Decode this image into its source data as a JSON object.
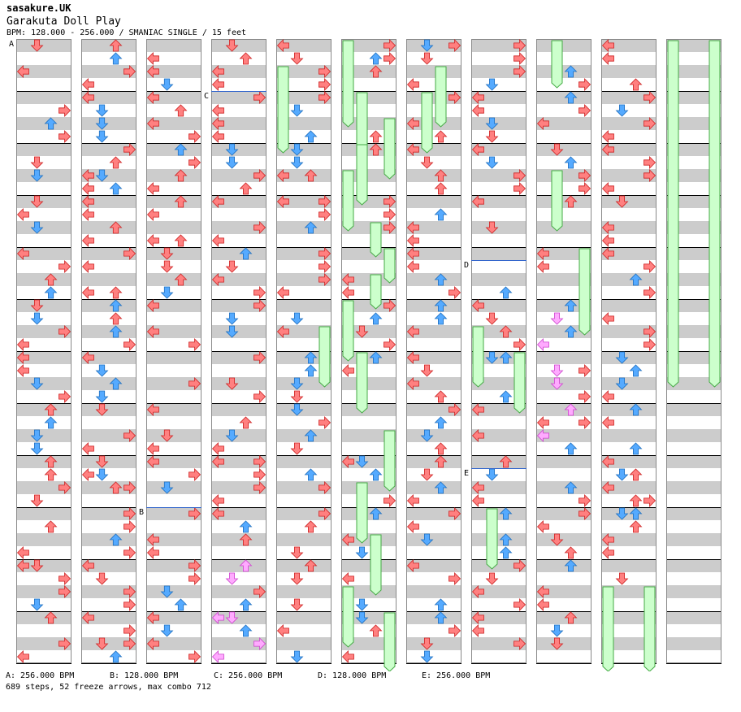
{
  "header": {
    "artist": "sasakure.UK",
    "title": "Garakuta Doll Play",
    "subtitle": "BPM: 128.000 - 256.000 / SMANIAC SINGLE / 15 feet"
  },
  "bpm_legend": [
    {
      "label": "A: 256.000 BPM"
    },
    {
      "label": "B: 128.000 BPM"
    },
    {
      "label": "C: 256.000 BPM"
    },
    {
      "label": "D: 128.000 BPM"
    },
    {
      "label": "E: 256.000 BPM"
    }
  ],
  "stats": {
    "summary": "689 steps, 52 freeze arrows, max combo 712"
  },
  "markers": [
    {
      "label": "A",
      "column": 1,
      "beat": 0
    },
    {
      "label": "B",
      "column": 3,
      "beat": 36
    },
    {
      "label": "C",
      "column": 4,
      "beat": 4
    },
    {
      "label": "D",
      "column": 8,
      "beat": 17
    },
    {
      "label": "E",
      "column": 8,
      "beat": 33
    }
  ],
  "colors": {
    "stripe_gray": "#cccccc",
    "left_arrow": "#ff8080",
    "down_arrow": "#55aaff",
    "shock_arrow": "#ffaaff",
    "freeze": "#ccffcc",
    "freeze_border": "#44aa44"
  },
  "chart": {
    "columns": 11,
    "beats_per_column": 48,
    "freezes": [
      {
        "col": 4,
        "lane": 0,
        "from": 2,
        "to": 8
      },
      {
        "col": 4,
        "lane": 3,
        "from": 22,
        "to": 26
      },
      {
        "col": 5,
        "lane": 0,
        "from": 0,
        "to": 6
      },
      {
        "col": 5,
        "lane": 1,
        "from": 4,
        "to": 8
      },
      {
        "col": 5,
        "lane": 3,
        "from": 6,
        "to": 10
      },
      {
        "col": 5,
        "lane": 1,
        "from": 8,
        "to": 12
      },
      {
        "col": 5,
        "lane": 0,
        "from": 10,
        "to": 14
      },
      {
        "col": 5,
        "lane": 2,
        "from": 14,
        "to": 16
      },
      {
        "col": 5,
        "lane": 3,
        "from": 16,
        "to": 18
      },
      {
        "col": 5,
        "lane": 2,
        "from": 18,
        "to": 20
      },
      {
        "col": 5,
        "lane": 0,
        "from": 20,
        "to": 24
      },
      {
        "col": 5,
        "lane": 1,
        "from": 24,
        "to": 28
      },
      {
        "col": 5,
        "lane": 3,
        "from": 30,
        "to": 34
      },
      {
        "col": 5,
        "lane": 1,
        "from": 34,
        "to": 38
      },
      {
        "col": 5,
        "lane": 2,
        "from": 38,
        "to": 42
      },
      {
        "col": 5,
        "lane": 0,
        "from": 42,
        "to": 46
      },
      {
        "col": 5,
        "lane": 3,
        "from": 44,
        "to": 48
      },
      {
        "col": 6,
        "lane": 2,
        "from": 2,
        "to": 6
      },
      {
        "col": 6,
        "lane": 1,
        "from": 4,
        "to": 8
      },
      {
        "col": 7,
        "lane": 0,
        "from": 22,
        "to": 26
      },
      {
        "col": 7,
        "lane": 3,
        "from": 24,
        "to": 28
      },
      {
        "col": 7,
        "lane": 1,
        "from": 36,
        "to": 40
      },
      {
        "col": 8,
        "lane": 1,
        "from": 0,
        "to": 3
      },
      {
        "col": 8,
        "lane": 1,
        "from": 10,
        "to": 14
      },
      {
        "col": 8,
        "lane": 3,
        "from": 16,
        "to": 22
      },
      {
        "col": 9,
        "lane": 0,
        "from": 42,
        "to": 50
      },
      {
        "col": 9,
        "lane": 3,
        "from": 42,
        "to": 50
      },
      {
        "col": 10,
        "lane": 0,
        "from": 0,
        "to": 26
      },
      {
        "col": 10,
        "lane": 3,
        "from": 0,
        "to": 26
      }
    ]
  }
}
